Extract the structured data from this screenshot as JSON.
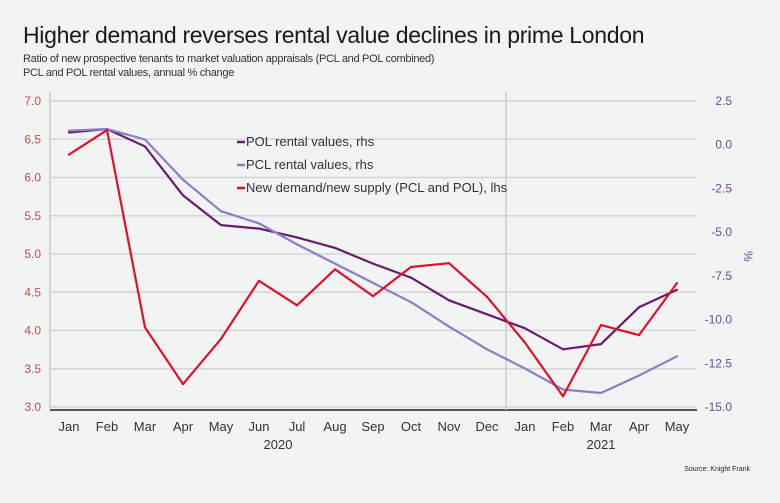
{
  "chart_data": {
    "type": "line",
    "title": "Higher demand reverses rental value declines in prime London",
    "subtitle_lines": [
      "Ratio of new prospective tenants to market valuation appraisals (PCL and POL combined)",
      "PCL and POL rental values, annual % change"
    ],
    "x": [
      "Jan",
      "Feb",
      "Mar",
      "Apr",
      "May",
      "Jun",
      "Jul",
      "Aug",
      "Sep",
      "Oct",
      "Nov",
      "Dec",
      "Jan",
      "Feb",
      "Mar",
      "Apr",
      "May"
    ],
    "year_labels": [
      {
        "label": "2020",
        "center_index": 5.5
      },
      {
        "label": "2021",
        "center_index": 14
      }
    ],
    "year_divider_after_index": 11,
    "y_left": {
      "ylim": [
        3.0,
        7.0
      ],
      "ticks": [
        "7.0",
        "6.5",
        "6.0",
        "5.5",
        "5.0",
        "4.5",
        "4.0",
        "3.5",
        "3.0"
      ],
      "color": "#c0504d"
    },
    "y_right": {
      "ylim": [
        -15.0,
        2.5
      ],
      "ticks": [
        "2.5",
        "0.0",
        "-2.5",
        "-5.0",
        "-7.5",
        "-10.0",
        "-12.5",
        "-15.0"
      ],
      "label": "%",
      "color": "#6b4c9a"
    },
    "grid": true,
    "legend_placement": "top-center",
    "series": [
      {
        "name": "POL rental values, rhs",
        "axis": "right",
        "color": "#6a1b6e",
        "values": [
          0.7,
          0.9,
          -0.1,
          -2.9,
          -4.6,
          -4.8,
          -5.3,
          -5.9,
          -6.8,
          -7.6,
          -8.9,
          -9.7,
          -10.5,
          -11.7,
          -11.4,
          -9.3,
          -8.3
        ]
      },
      {
        "name": "PCL rental values, rhs",
        "axis": "right",
        "color": "#8a7fc4",
        "values": [
          0.8,
          0.9,
          0.3,
          -2.0,
          -3.8,
          -4.5,
          -5.7,
          -6.8,
          -7.9,
          -9.0,
          -10.4,
          -11.7,
          -12.8,
          -14.0,
          -14.2,
          -13.2,
          -12.1
        ]
      },
      {
        "name": "New demand/new supply (PCL and POL), lhs",
        "axis": "left",
        "color": "#e0102d",
        "values": [
          6.3,
          6.62,
          4.04,
          3.3,
          3.89,
          4.65,
          4.33,
          4.8,
          4.45,
          4.83,
          4.88,
          4.44,
          3.84,
          3.14,
          4.07,
          3.94,
          4.62
        ]
      }
    ],
    "source": "Source: Knight Frank"
  }
}
